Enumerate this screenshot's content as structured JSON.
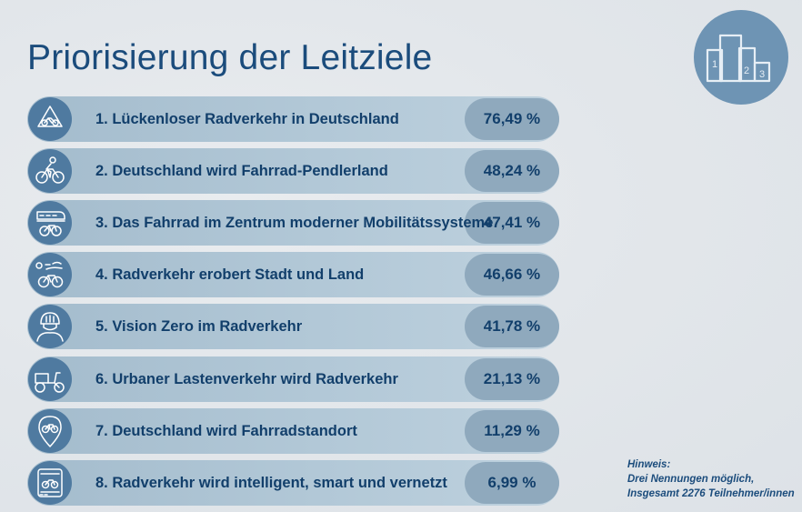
{
  "title": "Priorisierung der Leitziele",
  "podium_numbers": [
    "1",
    "2",
    "3"
  ],
  "chart_data": {
    "type": "bar",
    "orientation": "horizontal",
    "title": "Priorisierung der Leitziele",
    "unit": "%",
    "categories": [
      "1. Lückenloser Radverkehr in Deutschland",
      "2. Deutschland wird Fahrrad-Pendlerland",
      "3. Das Fahrrad im Zentrum moderner Mobilitätssysteme",
      "4. Radverkehr erobert Stadt und Land",
      "5. Vision Zero im Radverkehr",
      "6. Urbaner Lastenverkehr wird Radverkehr",
      "7. Deutschland wird Fahrradstandort",
      "8. Radverkehr wird intelligent, smart und vernetzt"
    ],
    "values": [
      76.49,
      48.24,
      47.41,
      46.66,
      41.78,
      21.13,
      11.29,
      6.99
    ],
    "value_labels": [
      "76,49 %",
      "48,24 %",
      "47,41 %",
      "46,66 %",
      "41,78 %",
      "21,13 %",
      "11,29 %",
      "6,99 %"
    ],
    "icons": [
      "cycle-path-sign-icon",
      "cyclist-icon",
      "train-bicycle-icon",
      "city-country-bicycle-icon",
      "helmet-person-icon",
      "cargo-bike-icon",
      "location-pin-bicycle-icon",
      "smart-device-bicycle-icon"
    ]
  },
  "note": {
    "heading": "Hinweis:",
    "line1": "Drei Nennungen möglich,",
    "line2": "Insgesamt 2276 Teilnehmer/innen"
  },
  "colors": {
    "title": "#1b4c7c",
    "text": "#123f6b",
    "icon_circle": "#4f7aa0",
    "bar_track": "#b2c8d7",
    "value_pill": "#8fa9bd"
  }
}
